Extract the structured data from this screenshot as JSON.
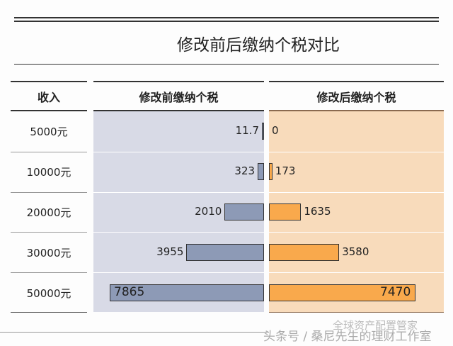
{
  "chart_data": {
    "type": "bar",
    "title": "修改前后缴纳个税对比",
    "row_header": "收入",
    "categories": [
      "5000元",
      "10000元",
      "20000元",
      "30000元",
      "50000元"
    ],
    "series": [
      {
        "name": "修改前缴纳个税",
        "values": [
          11.7,
          323,
          2010,
          3955,
          7865
        ],
        "labels": [
          "11.7",
          "323",
          "2010",
          "3955",
          "7865"
        ],
        "color": "#8d9ab6",
        "bg": "#d8dae6"
      },
      {
        "name": "修改后缴纳个税",
        "values": [
          0,
          173,
          1635,
          3580,
          7470
        ],
        "labels": [
          "0",
          "173",
          "1635",
          "3580",
          "7470"
        ],
        "color": "#f9a94c",
        "bg": "#f8dbbb"
      }
    ],
    "xlim": [
      0,
      7865
    ]
  },
  "watermark": {
    "line1": "全球资产配置管家",
    "line2": "头条号 / 桑尼先生的理财工作室"
  }
}
